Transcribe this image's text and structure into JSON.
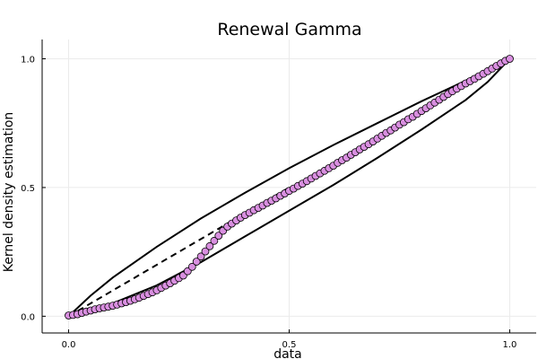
{
  "chart_data": {
    "type": "scatter",
    "title": "Renewal Gamma",
    "xlabel": "data",
    "ylabel": "Kernel density estimation",
    "xlim": [
      -0.06,
      1.06
    ],
    "ylim": [
      -0.065,
      1.075
    ],
    "xticks": [
      {
        "value": 0.0,
        "label": "0.0"
      },
      {
        "value": 0.5,
        "label": "0.5"
      },
      {
        "value": 1.0,
        "label": "1.0"
      }
    ],
    "yticks": [
      {
        "value": 0.0,
        "label": "0.0"
      },
      {
        "value": 0.5,
        "label": "0.5"
      },
      {
        "value": 1.0,
        "label": "1.0"
      }
    ],
    "grid": true,
    "legend": "none",
    "colors": {
      "points_fill": "#d98fe0",
      "points_edge": "#000000",
      "lines": "#000000",
      "grid": "#ebebeb"
    },
    "reference_line": {
      "style": "dashed",
      "x": [
        0.0,
        0.5
      ],
      "y": [
        0.0,
        0.5
      ]
    },
    "band_upper": {
      "x": [
        0.0,
        0.05,
        0.1,
        0.2,
        0.3,
        0.4,
        0.5,
        0.6,
        0.7,
        0.8,
        0.9,
        0.95,
        1.0
      ],
      "y": [
        0.0,
        0.08,
        0.15,
        0.27,
        0.38,
        0.48,
        0.575,
        0.665,
        0.75,
        0.835,
        0.915,
        0.96,
        1.0
      ]
    },
    "band_lower": {
      "x": [
        0.0,
        0.05,
        0.1,
        0.2,
        0.3,
        0.4,
        0.5,
        0.6,
        0.7,
        0.8,
        0.9,
        0.95,
        1.0
      ],
      "y": [
        0.0,
        0.02,
        0.05,
        0.12,
        0.21,
        0.31,
        0.41,
        0.51,
        0.615,
        0.725,
        0.84,
        0.91,
        1.0
      ]
    },
    "points": {
      "x": [
        0.0,
        0.01,
        0.02,
        0.03,
        0.04,
        0.05,
        0.06,
        0.07,
        0.08,
        0.09,
        0.1,
        0.11,
        0.12,
        0.13,
        0.14,
        0.15,
        0.16,
        0.17,
        0.18,
        0.19,
        0.2,
        0.21,
        0.22,
        0.23,
        0.24,
        0.25,
        0.26,
        0.27,
        0.28,
        0.29,
        0.3,
        0.31,
        0.32,
        0.33,
        0.34,
        0.35,
        0.36,
        0.37,
        0.38,
        0.39,
        0.4,
        0.41,
        0.42,
        0.43,
        0.44,
        0.45,
        0.46,
        0.47,
        0.48,
        0.49,
        0.5,
        0.51,
        0.52,
        0.53,
        0.54,
        0.55,
        0.56,
        0.57,
        0.58,
        0.59,
        0.6,
        0.61,
        0.62,
        0.63,
        0.64,
        0.65,
        0.66,
        0.67,
        0.68,
        0.69,
        0.7,
        0.71,
        0.72,
        0.73,
        0.74,
        0.75,
        0.76,
        0.77,
        0.78,
        0.79,
        0.8,
        0.81,
        0.82,
        0.83,
        0.84,
        0.85,
        0.86,
        0.87,
        0.88,
        0.89,
        0.9,
        0.91,
        0.92,
        0.93,
        0.94,
        0.95,
        0.96,
        0.97,
        0.98,
        0.99,
        1.0
      ],
      "y": [
        0.003,
        0.005,
        0.008,
        0.013,
        0.018,
        0.022,
        0.027,
        0.031,
        0.034,
        0.037,
        0.041,
        0.045,
        0.05,
        0.055,
        0.06,
        0.066,
        0.072,
        0.079,
        0.086,
        0.093,
        0.101,
        0.11,
        0.119,
        0.128,
        0.138,
        0.148,
        0.158,
        0.175,
        0.192,
        0.212,
        0.232,
        0.252,
        0.272,
        0.293,
        0.313,
        0.332,
        0.348,
        0.36,
        0.372,
        0.383,
        0.393,
        0.402,
        0.412,
        0.421,
        0.43,
        0.44,
        0.449,
        0.458,
        0.468,
        0.477,
        0.487,
        0.496,
        0.506,
        0.515,
        0.525,
        0.535,
        0.545,
        0.555,
        0.565,
        0.575,
        0.585,
        0.596,
        0.606,
        0.616,
        0.627,
        0.637,
        0.648,
        0.658,
        0.668,
        0.679,
        0.69,
        0.701,
        0.712,
        0.722,
        0.733,
        0.744,
        0.754,
        0.765,
        0.775,
        0.786,
        0.797,
        0.808,
        0.819,
        0.83,
        0.841,
        0.852,
        0.863,
        0.874,
        0.884,
        0.894,
        0.904,
        0.913,
        0.922,
        0.932,
        0.942,
        0.952,
        0.962,
        0.972,
        0.982,
        0.992,
        1.0
      ]
    }
  }
}
